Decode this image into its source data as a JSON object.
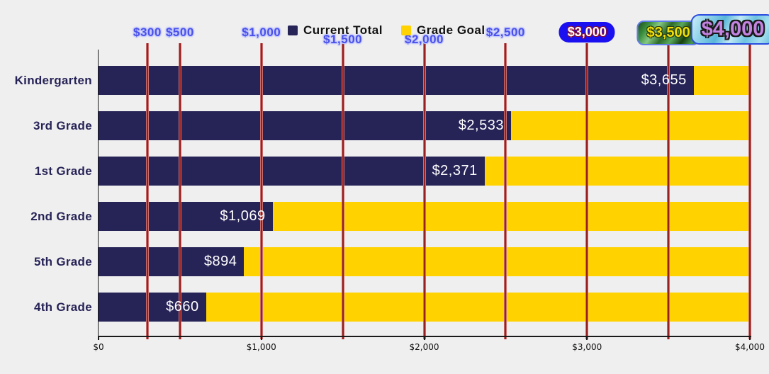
{
  "page": {
    "background": "#f0efef"
  },
  "legend": {
    "items": [
      {
        "label": "Current Total",
        "color": "#262357"
      },
      {
        "label": "Grade Goal",
        "color": "#ffd200"
      }
    ]
  },
  "chart_data": {
    "type": "bar",
    "orientation": "horizontal",
    "title": "",
    "xlabel": "",
    "ylabel": "",
    "grid": "vertical-red-milestone-lines",
    "legend_position": "top-center",
    "categories": [
      "Kindergarten",
      "3rd Grade",
      "1st Grade",
      "2nd Grade",
      "5th Grade",
      "4th Grade"
    ],
    "series": [
      {
        "name": "Current Total",
        "color": "#262357",
        "values": [
          3655,
          2533,
          2371,
          1069,
          894,
          660
        ],
        "value_labels": [
          "$3,655",
          "$2,533",
          "$2,371",
          "$1,069",
          "$894",
          "$660"
        ]
      },
      {
        "name": "Grade Goal",
        "color": "#ffd200",
        "values": [
          4000,
          4000,
          4000,
          4000,
          4000,
          4000
        ]
      }
    ],
    "xlim": [
      0,
      4000
    ],
    "x_ticks": [
      {
        "value": 0,
        "label": "$0"
      },
      {
        "value": 1000,
        "label": "$1,000"
      },
      {
        "value": 2000,
        "label": "$2,000"
      },
      {
        "value": 3000,
        "label": "$3,000"
      },
      {
        "value": 4000,
        "label": "$4,000"
      }
    ],
    "milestones": [
      {
        "value": 300,
        "label": "$300",
        "style": "plain",
        "lowered": false
      },
      {
        "value": 500,
        "label": "$500",
        "style": "plain",
        "lowered": false
      },
      {
        "value": 1000,
        "label": "$1,000",
        "style": "plain",
        "lowered": false
      },
      {
        "value": 1500,
        "label": "$1,500",
        "style": "plain",
        "lowered": true
      },
      {
        "value": 2000,
        "label": "$2,000",
        "style": "plain",
        "lowered": true
      },
      {
        "value": 2500,
        "label": "$2,500",
        "style": "plain",
        "lowered": false
      },
      {
        "value": 3000,
        "label": "$3,000",
        "style": "blue-pill",
        "lowered": false
      },
      {
        "value": 3500,
        "label": "$3,500",
        "style": "green-pill",
        "lowered": false
      },
      {
        "value": 4000,
        "label": "$4,000",
        "style": "aqua-pill",
        "lowered": false
      }
    ],
    "milestone_line_color": "#8e1111",
    "value_label_color": "#ffffff",
    "category_label_color": "#262357"
  }
}
